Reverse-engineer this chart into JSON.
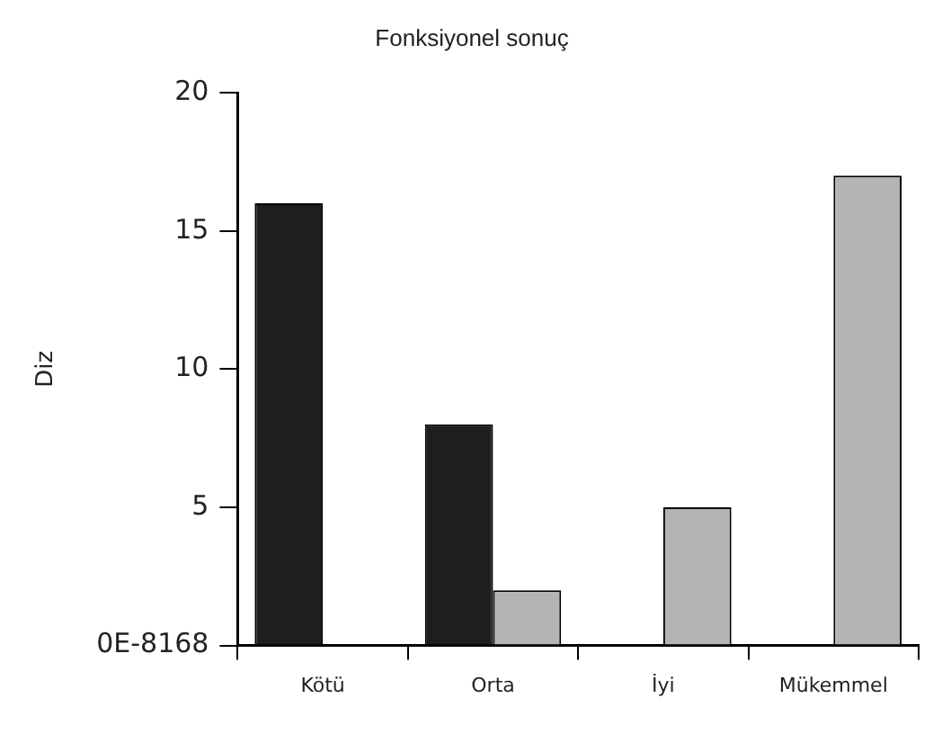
{
  "chart_data": {
    "type": "bar",
    "title": "Fonksiyonel sonuç",
    "ylabel": "Diz",
    "categories": [
      "Kötü",
      "Orta",
      "İyi",
      "Mükemmel"
    ],
    "series": [
      {
        "color": "#1e1e1e",
        "values": [
          16,
          8,
          0,
          0
        ]
      },
      {
        "color": "#b4b4b4",
        "values": [
          0,
          2,
          5,
          17
        ]
      }
    ],
    "ylim": [
      0,
      20
    ],
    "yticks": [
      {
        "value": 0,
        "label": "0E-8168"
      },
      5,
      10,
      15,
      20
    ],
    "grid": false,
    "legend": false
  }
}
